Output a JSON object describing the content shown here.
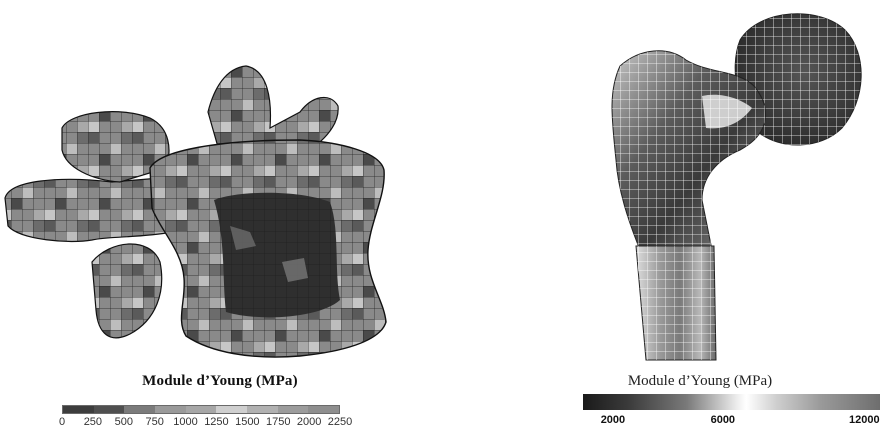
{
  "left_figure": {
    "legend_title": "Module d’Young (MPa)",
    "tick_labels": [
      "0",
      "250",
      "500",
      "750",
      "1000",
      "1250",
      "1500",
      "1750",
      "2000",
      "2250"
    ],
    "colorbar_colors": [
      "#3d3d3d",
      "#4f4f4f",
      "#7b7b7b",
      "#9a9a9a",
      "#a7a7a7",
      "#cfcfcf",
      "#b1b1b1",
      "#9c9c9c",
      "#8e8e8e"
    ]
  },
  "right_figure": {
    "legend_title": "Module d’Young (MPa)",
    "tick_labels": [
      "2000",
      "6000",
      "12000"
    ]
  }
}
